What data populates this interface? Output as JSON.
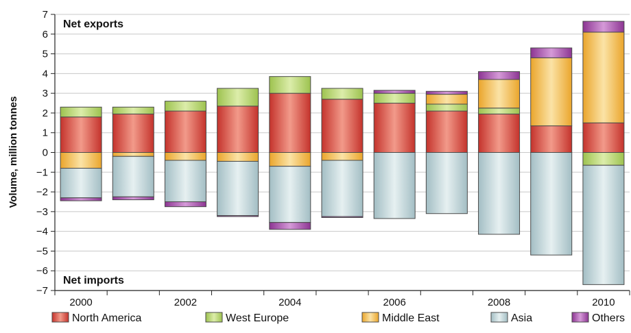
{
  "chart_data": {
    "type": "bar",
    "stacked": true,
    "ylabel": "Volume, million tonnes",
    "ylim": [
      -7,
      7
    ],
    "yticks": [
      7,
      6,
      5,
      4,
      3,
      2,
      1,
      0,
      -1,
      -2,
      -3,
      -4,
      -5,
      -6,
      -7
    ],
    "ytick_labels": [
      "7",
      "6",
      "5",
      "4",
      "3",
      "2",
      "1",
      "0",
      "−1",
      "−2",
      "−3",
      "−4",
      "−5",
      "−6",
      "−7"
    ],
    "x": [
      2000,
      2001,
      2002,
      2003,
      2004,
      2005,
      2006,
      2007,
      2008,
      2009,
      2010
    ],
    "xtick_labels": [
      "2000",
      "",
      "2002",
      "",
      "2004",
      "",
      "2006",
      "",
      "2008",
      "",
      "2010"
    ],
    "grid": true,
    "legend_position": "bottom",
    "annotations": [
      {
        "text": "Net exports",
        "position": "top-left"
      },
      {
        "text": "Net imports",
        "position": "bottom-left"
      }
    ],
    "colors": {
      "North America": "#d9473b",
      "West Europe": "#b6d56a",
      "Middle East": "#f2b23e",
      "Asia": "#b9d0d4",
      "Others": "#a24aa8"
    },
    "series": [
      {
        "name": "North America",
        "values": [
          1.8,
          1.95,
          2.1,
          2.35,
          3.0,
          2.7,
          2.5,
          2.1,
          1.95,
          1.35,
          1.5
        ]
      },
      {
        "name": "West Europe",
        "values": [
          0.5,
          0.35,
          0.5,
          0.9,
          0.85,
          0.55,
          0.5,
          0.35,
          0.3,
          0.0,
          -0.65
        ]
      },
      {
        "name": "Middle East",
        "values": [
          -0.8,
          -0.2,
          -0.4,
          -0.45,
          -0.7,
          -0.4,
          0.0,
          0.5,
          1.45,
          3.45,
          4.6
        ]
      },
      {
        "name": "Asia",
        "values": [
          -1.5,
          -2.05,
          -2.1,
          -2.75,
          -2.85,
          -2.85,
          -3.35,
          -3.1,
          -4.15,
          -5.2,
          -6.05
        ]
      },
      {
        "name": "Others",
        "values": [
          -0.15,
          -0.15,
          -0.25,
          -0.05,
          -0.35,
          -0.05,
          0.15,
          0.15,
          0.4,
          0.5,
          0.55
        ]
      }
    ]
  }
}
